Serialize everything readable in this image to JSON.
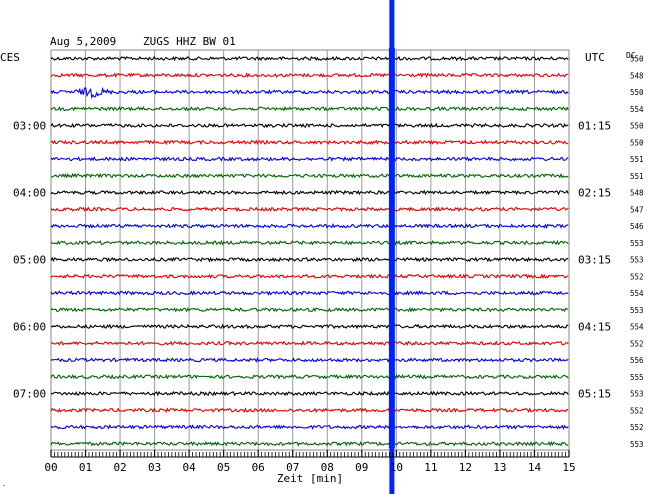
{
  "header": {
    "date": "Aug 5,2009",
    "station": "ZUGS HHZ BW 01",
    "left_tz": "CES",
    "right_tz": "UTC",
    "dc_label": "DC"
  },
  "x_axis": {
    "label": "Zeit [min]",
    "ticks": [
      "00",
      "01",
      "02",
      "03",
      "04",
      "05",
      "06",
      "07",
      "08",
      "09",
      "10",
      "11",
      "12",
      "13",
      "14",
      "15"
    ]
  },
  "trace_colors": [
    "#000000",
    "#e00000",
    "#0000e0",
    "#006400"
  ],
  "marker_color": "#0022ff",
  "left_hour_labels": [
    {
      "row": 4,
      "text": "03:00"
    },
    {
      "row": 8,
      "text": "04:00"
    },
    {
      "row": 12,
      "text": "05:00"
    },
    {
      "row": 16,
      "text": "06:00"
    },
    {
      "row": 20,
      "text": "07:00"
    }
  ],
  "right_hour_labels": [
    {
      "row": 4,
      "text": "01:15"
    },
    {
      "row": 8,
      "text": "02:15"
    },
    {
      "row": 12,
      "text": "03:15"
    },
    {
      "row": 16,
      "text": "04:15"
    },
    {
      "row": 20,
      "text": "05:15"
    }
  ],
  "dc_values": [
    "550",
    "548",
    "550",
    "554",
    "550",
    "550",
    "551",
    "551",
    "548",
    "547",
    "546",
    "553",
    "553",
    "552",
    "554",
    "553",
    "554",
    "552",
    "556",
    "555",
    "553",
    "552",
    "552",
    "553"
  ],
  "chart_data": {
    "type": "line",
    "title": "Aug 5,2009  ZUGS HHZ BW 01",
    "xlabel": "Zeit [min]",
    "xlim": [
      0,
      15
    ],
    "rows": 24,
    "row_minutes": 15,
    "start_time_ces": "02:00",
    "start_time_utc": "00:15",
    "marker_minute": 9.9,
    "burst": {
      "row": 2,
      "minute": 1.2
    }
  }
}
